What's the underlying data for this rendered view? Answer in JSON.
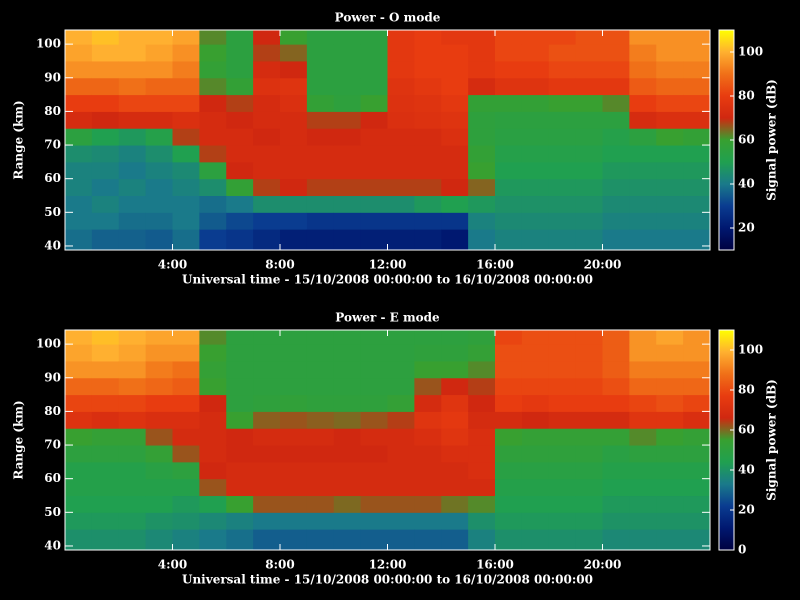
{
  "chart_data": [
    {
      "type": "heatmap",
      "title": "Power - O mode",
      "xlabel": "Universal time - 15/10/2008 00:00:00 to 16/10/2008 00:00:00",
      "ylabel": "Range (km)",
      "colorbar_label": "Signal power (dB)",
      "xlim": [
        0,
        24
      ],
      "ylim": [
        38.8,
        104.2
      ],
      "xticks": [
        {
          "value": 4,
          "label": "4:00"
        },
        {
          "value": 8,
          "label": "8:00"
        },
        {
          "value": 12,
          "label": "12:00"
        },
        {
          "value": 16,
          "label": "16:00"
        },
        {
          "value": 20,
          "label": "20:00"
        }
      ],
      "yticks": [
        40,
        50,
        60,
        70,
        80,
        90,
        100
      ],
      "clim": [
        10,
        110
      ],
      "cticks": [
        20,
        40,
        60,
        80,
        100
      ],
      "colormap": [
        "#000040",
        "#001870",
        "#0a3c90",
        "#1a7a8a",
        "#20a050",
        "#38a030",
        "#d02810",
        "#e83c10",
        "#f07018",
        "#ffb030",
        "#ffff00"
      ],
      "x_bins": [
        0,
        1,
        2,
        3,
        4,
        5,
        6,
        7,
        8,
        9,
        10,
        11,
        12,
        13,
        14,
        15,
        16,
        17,
        18,
        19,
        20,
        21,
        22,
        23,
        24
      ],
      "y_bins": [
        38.8,
        45,
        50,
        55,
        60,
        65,
        70,
        75,
        80,
        85,
        90,
        95,
        100,
        104.2
      ],
      "z": [
        [
          38,
          40,
          40,
          42,
          42,
          45,
          55,
          72,
          80,
          88,
          95,
          98,
          100
        ],
        [
          36,
          40,
          42,
          40,
          42,
          44,
          50,
          70,
          80,
          88,
          95,
          100,
          102
        ],
        [
          36,
          38,
          40,
          42,
          40,
          42,
          48,
          72,
          82,
          90,
          95,
          100,
          100
        ],
        [
          35,
          38,
          40,
          40,
          42,
          45,
          52,
          72,
          82,
          88,
          95,
          98,
          100
        ],
        [
          38,
          40,
          40,
          42,
          44,
          50,
          68,
          74,
          82,
          88,
          92,
          95,
          98
        ],
        [
          30,
          35,
          38,
          45,
          55,
          68,
          72,
          72,
          70,
          62,
          58,
          60,
          62
        ],
        [
          28,
          32,
          40,
          58,
          70,
          72,
          72,
          70,
          68,
          58,
          55,
          55,
          55
        ],
        [
          25,
          30,
          45,
          68,
          72,
          72,
          70,
          72,
          72,
          75,
          72,
          68,
          70
        ],
        [
          22,
          30,
          45,
          70,
          72,
          72,
          72,
          72,
          74,
          76,
          70,
          65,
          60
        ],
        [
          22,
          28,
          45,
          68,
          72,
          72,
          70,
          68,
          58,
          55,
          55,
          55,
          55
        ],
        [
          22,
          28,
          45,
          68,
          72,
          72,
          70,
          68,
          56,
          55,
          55,
          55,
          55
        ],
        [
          22,
          28,
          45,
          68,
          72,
          72,
          72,
          70,
          60,
          55,
          55,
          55,
          55
        ],
        [
          22,
          28,
          45,
          68,
          72,
          72,
          72,
          74,
          75,
          76,
          78,
          78,
          78
        ],
        [
          22,
          28,
          48,
          68,
          72,
          72,
          72,
          75,
          76,
          78,
          80,
          80,
          80
        ],
        [
          20,
          28,
          50,
          70,
          72,
          72,
          74,
          76,
          78,
          80,
          80,
          80,
          78
        ],
        [
          40,
          42,
          48,
          65,
          60,
          58,
          56,
          56,
          58,
          72,
          78,
          78,
          78
        ],
        [
          42,
          44,
          46,
          48,
          50,
          52,
          54,
          55,
          58,
          76,
          80,
          82,
          82
        ],
        [
          42,
          44,
          46,
          48,
          50,
          52,
          54,
          55,
          58,
          76,
          80,
          82,
          82
        ],
        [
          42,
          44,
          46,
          48,
          50,
          52,
          54,
          55,
          60,
          78,
          82,
          84,
          82
        ],
        [
          42,
          44,
          46,
          48,
          50,
          52,
          54,
          55,
          60,
          78,
          82,
          84,
          84
        ],
        [
          40,
          42,
          44,
          46,
          48,
          50,
          52,
          55,
          62,
          78,
          82,
          84,
          84
        ],
        [
          40,
          42,
          44,
          46,
          48,
          50,
          55,
          72,
          80,
          86,
          90,
          92,
          95
        ],
        [
          40,
          42,
          44,
          46,
          48,
          50,
          60,
          74,
          82,
          88,
          92,
          95,
          95
        ],
        [
          40,
          42,
          44,
          46,
          48,
          50,
          58,
          74,
          82,
          88,
          92,
          95,
          95
        ]
      ]
    },
    {
      "type": "heatmap",
      "title": "Power - E mode",
      "xlabel": "Universal time - 15/10/2008 00:00:00 to 16/10/2008 00:00:00",
      "ylabel": "Range (km)",
      "colorbar_label": "Signal power (dB)",
      "xlim": [
        0,
        24
      ],
      "ylim": [
        38.8,
        104.2
      ],
      "xticks": [
        {
          "value": 4,
          "label": "4:00"
        },
        {
          "value": 8,
          "label": "8:00"
        },
        {
          "value": 12,
          "label": "12:00"
        },
        {
          "value": 16,
          "label": "16:00"
        },
        {
          "value": 20,
          "label": "20:00"
        }
      ],
      "yticks": [
        40,
        50,
        60,
        70,
        80,
        90,
        100
      ],
      "clim": [
        0,
        110
      ],
      "cticks": [
        0,
        20,
        40,
        60,
        80,
        100
      ],
      "colormap": [
        "#000040",
        "#001870",
        "#0a3c90",
        "#1a7a8a",
        "#20a050",
        "#38a030",
        "#d02810",
        "#e83c10",
        "#f07018",
        "#ffb030",
        "#ffff00"
      ],
      "x_bins": [
        0,
        1,
        2,
        3,
        4,
        5,
        6,
        7,
        8,
        9,
        10,
        11,
        12,
        13,
        14,
        15,
        16,
        17,
        18,
        19,
        20,
        21,
        22,
        23,
        24
      ],
      "y_bins": [
        38.8,
        45,
        50,
        55,
        60,
        65,
        70,
        75,
        80,
        85,
        90,
        95,
        100,
        104.2
      ],
      "z": [
        [
          39,
          42,
          44,
          46,
          46,
          50,
          55,
          72,
          79,
          86,
          94,
          97,
          99
        ],
        [
          39,
          42,
          44,
          46,
          46,
          50,
          53,
          70,
          79,
          86,
          94,
          99,
          101
        ],
        [
          39,
          42,
          44,
          46,
          46,
          50,
          53,
          72,
          79,
          88,
          94,
          97,
          99
        ],
        [
          37,
          40,
          44,
          46,
          48,
          53,
          62,
          70,
          77,
          86,
          90,
          94,
          97
        ],
        [
          35,
          39,
          42,
          46,
          50,
          62,
          68,
          70,
          77,
          84,
          88,
          94,
          97
        ],
        [
          33,
          37,
          44,
          62,
          66,
          68,
          68,
          68,
          66,
          55,
          53,
          55,
          57
        ],
        [
          31,
          35,
          55,
          68,
          68,
          66,
          66,
          55,
          50,
          50,
          50,
          50,
          50
        ],
        [
          28,
          33,
          62,
          68,
          68,
          66,
          68,
          61,
          51,
          50,
          50,
          50,
          50
        ],
        [
          28,
          33,
          62,
          68,
          68,
          66,
          68,
          62,
          52,
          50,
          50,
          50,
          50
        ],
        [
          28,
          33,
          62,
          68,
          68,
          66,
          68,
          61,
          51,
          50,
          50,
          50,
          50
        ],
        [
          28,
          33,
          60,
          68,
          68,
          66,
          66,
          60,
          51,
          50,
          50,
          50,
          50
        ],
        [
          28,
          33,
          62,
          68,
          68,
          66,
          68,
          62,
          51,
          50,
          50,
          50,
          50
        ],
        [
          28,
          33,
          62,
          68,
          68,
          68,
          68,
          64,
          53,
          50,
          50,
          50,
          50
        ],
        [
          28,
          33,
          62,
          68,
          68,
          68,
          70,
          73,
          68,
          62,
          55,
          51,
          50
        ],
        [
          28,
          33,
          59,
          68,
          68,
          70,
          73,
          75,
          73,
          66,
          55,
          51,
          50
        ],
        [
          35,
          39,
          57,
          68,
          70,
          70,
          70,
          68,
          66,
          64,
          57,
          53,
          51
        ],
        [
          39,
          42,
          44,
          46,
          48,
          51,
          55,
          68,
          77,
          79,
          81,
          81,
          79
        ],
        [
          39,
          42,
          44,
          46,
          48,
          51,
          53,
          66,
          75,
          79,
          81,
          81,
          81
        ],
        [
          39,
          42,
          44,
          46,
          48,
          51,
          53,
          68,
          77,
          79,
          81,
          81,
          81
        ],
        [
          39,
          42,
          44,
          46,
          48,
          51,
          53,
          68,
          77,
          79,
          81,
          81,
          81
        ],
        [
          37,
          40,
          42,
          44,
          46,
          48,
          53,
          68,
          77,
          81,
          84,
          84,
          84
        ],
        [
          37,
          40,
          42,
          44,
          46,
          50,
          57,
          73,
          79,
          86,
          90,
          94,
          94
        ],
        [
          37,
          40,
          42,
          44,
          46,
          50,
          55,
          73,
          81,
          86,
          90,
          94,
          97
        ],
        [
          37,
          40,
          42,
          44,
          46,
          50,
          53,
          70,
          79,
          86,
          90,
          94,
          94
        ]
      ]
    }
  ]
}
